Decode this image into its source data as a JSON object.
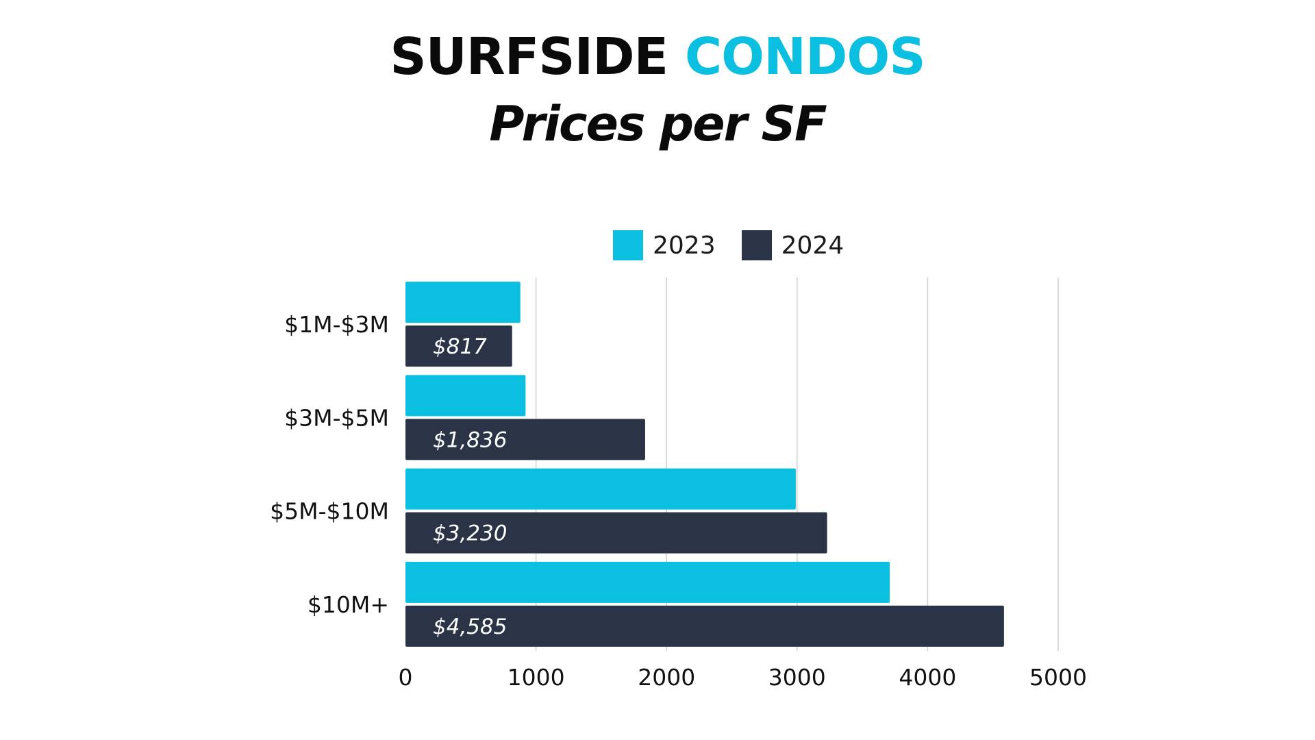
{
  "header": {
    "title_part1": "SURFSIDE",
    "title_part2": "CONDOS",
    "subtitle": "Prices per SF"
  },
  "colors": {
    "series_2023": "#0bbfe0",
    "series_2024": "#2b3447",
    "grid": "#cfcfcf"
  },
  "chart_data": {
    "type": "bar",
    "orientation": "horizontal",
    "categories": [
      "$1M-$3M",
      "$3M-$5M",
      "$5M-$10M",
      "$10M+"
    ],
    "series": [
      {
        "name": "2023",
        "values": [
          880,
          920,
          2990,
          3710
        ],
        "data_labels": [
          "",
          "",
          "",
          ""
        ]
      },
      {
        "name": "2024",
        "values": [
          817,
          1836,
          3230,
          4585
        ],
        "data_labels": [
          "$817",
          "$1,836",
          "$3,230",
          "$4,585"
        ]
      }
    ],
    "xlim": [
      0,
      5000
    ],
    "xticks": [
      0,
      1000,
      2000,
      3000,
      4000,
      5000
    ],
    "grid": true,
    "legend_placement": "top"
  }
}
